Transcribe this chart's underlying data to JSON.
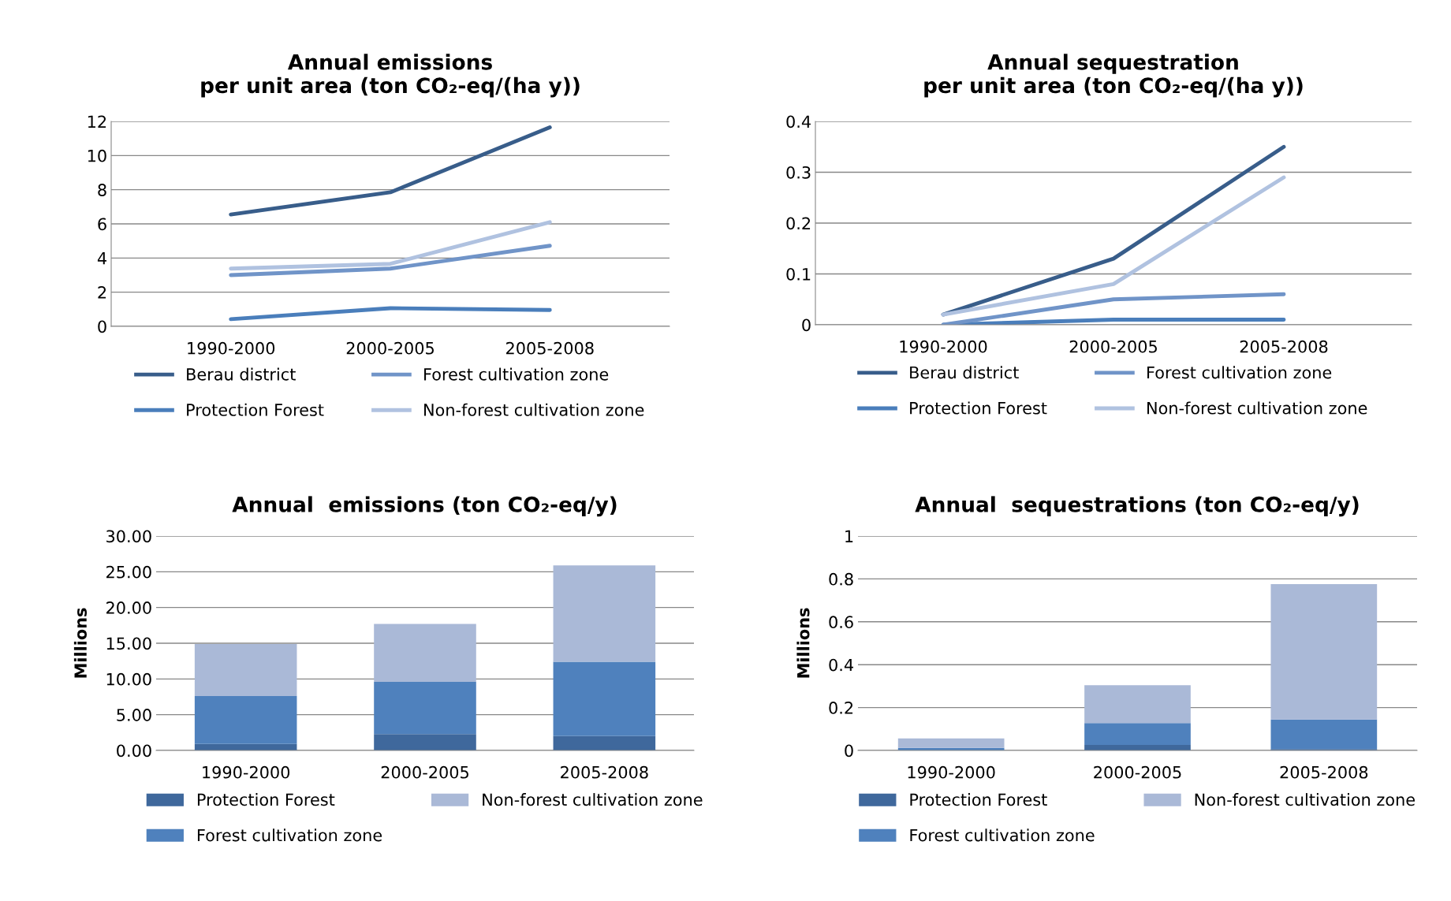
{
  "chart_data": [
    {
      "type": "line",
      "title": "Annual emissions\nper unit area (ton CO₂-eq/(ha y))",
      "categories": [
        "1990-2000",
        "2000-2005",
        "2005-2008"
      ],
      "ylim": [
        0,
        12
      ],
      "yticks": [
        0,
        2,
        4,
        6,
        8,
        10,
        12
      ],
      "grid": "y",
      "legend": "bottom",
      "line_style": "solid",
      "marker": "none",
      "series": [
        {
          "name": "Berau district",
          "color": "#385d8a",
          "values": [
            6.55,
            7.85,
            11.65
          ]
        },
        {
          "name": "Protection Forest",
          "color": "#4a7ebb",
          "values": [
            0.42,
            1.06,
            0.96
          ]
        },
        {
          "name": "Forest cultivation zone",
          "color": "#7094c8",
          "values": [
            3.0,
            3.38,
            4.72
          ]
        },
        {
          "name": "Non-forest cultivation zone",
          "color": "#b0c2e0",
          "values": [
            3.38,
            3.66,
            6.1
          ]
        }
      ]
    },
    {
      "type": "line",
      "title": "Annual sequestration\nper unit area (ton CO₂-eq/(ha y))",
      "categories": [
        "1990-2000",
        "2000-2005",
        "2005-2008"
      ],
      "ylim": [
        0,
        0.4
      ],
      "yticks": [
        0,
        0.1,
        0.2,
        0.3,
        0.4
      ],
      "grid": "y",
      "legend": "bottom",
      "line_style": "solid",
      "marker": "none",
      "series": [
        {
          "name": "Berau district",
          "color": "#385d8a",
          "values": [
            0.02,
            0.13,
            0.35
          ]
        },
        {
          "name": "Protection Forest",
          "color": "#4a7ebb",
          "values": [
            0.0,
            0.01,
            0.01
          ]
        },
        {
          "name": "Forest cultivation zone",
          "color": "#7094c8",
          "values": [
            0.0,
            0.05,
            0.06
          ]
        },
        {
          "name": "Non-forest cultivation zone",
          "color": "#b0c2e0",
          "values": [
            0.02,
            0.08,
            0.29
          ]
        }
      ]
    },
    {
      "type": "bar",
      "stacked": true,
      "title": "Annual  emissions (ton CO₂-eq/y)",
      "ylabel": "Millions",
      "categories": [
        "1990-2000",
        "2000-2005",
        "2005-2008"
      ],
      "ylim": [
        0,
        30
      ],
      "yticks": [
        {
          "value": 0,
          "label": "0.00"
        },
        {
          "value": 5,
          "label": "5.00"
        },
        {
          "value": 10,
          "label": "10.00"
        },
        {
          "value": 15,
          "label": "15.00"
        },
        {
          "value": 20,
          "label": "20.00"
        },
        {
          "value": 25,
          "label": "25.00"
        },
        {
          "value": 30,
          "label": "30.00"
        }
      ],
      "grid": "y",
      "legend": "bottom",
      "series": [
        {
          "name": "Protection Forest",
          "color": "#3f689c",
          "values": [
            0.9,
            2.3,
            2.0
          ]
        },
        {
          "name": "Forest cultivation zone",
          "color": "#4f81bd",
          "values": [
            6.7,
            7.3,
            10.4
          ]
        },
        {
          "name": "Non-forest cultivation zone",
          "color": "#aab9d7",
          "values": [
            7.3,
            8.1,
            13.5
          ]
        }
      ]
    },
    {
      "type": "bar",
      "stacked": true,
      "title": "Annual  sequestrations (ton CO₂-eq/y)",
      "ylabel": "Millions",
      "categories": [
        "1990-2000",
        "2000-2005",
        "2005-2008"
      ],
      "ylim": [
        0,
        1
      ],
      "yticks": [
        0,
        0.2,
        0.4,
        0.6,
        0.8,
        1
      ],
      "grid": "y",
      "legend": "bottom",
      "series": [
        {
          "name": "Protection Forest",
          "color": "#3f689c",
          "values": [
            null,
            0.026,
            0.006
          ]
        },
        {
          "name": "Forest cultivation zone",
          "color": "#4f81bd",
          "values": [
            0.012,
            0.102,
            0.138
          ]
        },
        {
          "name": "Non-forest cultivation zone",
          "color": "#aab9d7",
          "values": [
            0.044,
            0.176,
            0.632
          ]
        }
      ]
    }
  ]
}
